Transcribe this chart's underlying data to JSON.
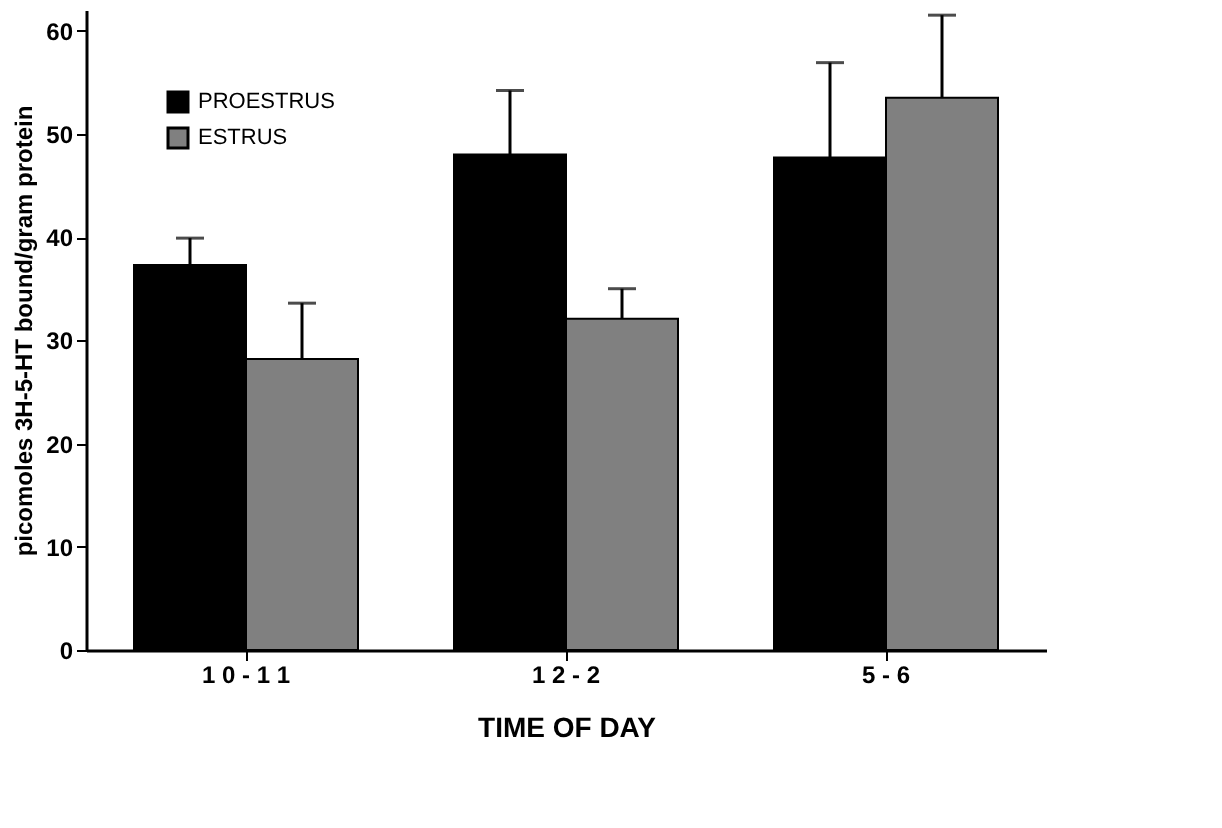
{
  "chart_data": {
    "type": "bar",
    "xlabel": "TIME OF DAY",
    "ylabel": "picomoles 3H-5-HT bound/gram protein",
    "categories": [
      "1 0 - 1 1",
      "1 2 - 2",
      "5 - 6"
    ],
    "series": [
      {
        "name": "PROESTRUS",
        "color": "#000000",
        "values": [
          37.3,
          48.0,
          47.7
        ],
        "errors": [
          [
            37.3,
            39.9
          ],
          [
            48.0,
            54.2
          ],
          [
            47.7,
            56.9
          ]
        ]
      },
      {
        "name": "ESTRUS",
        "color": "#808080",
        "values": [
          28.2,
          32.1,
          53.5
        ],
        "errors": [
          [
            28.2,
            33.6
          ],
          [
            32.1,
            35.0
          ],
          [
            53.5,
            61.5
          ]
        ]
      }
    ],
    "ylim": [
      0,
      62
    ],
    "yticks": [
      0,
      10,
      20,
      30,
      40,
      50,
      60
    ],
    "grid": false,
    "legend": "top left"
  }
}
